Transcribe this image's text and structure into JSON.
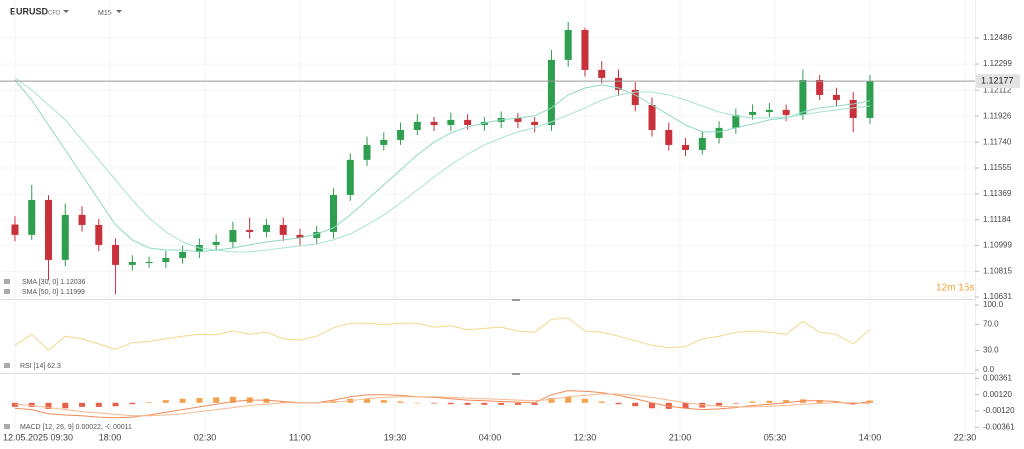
{
  "header": {
    "symbol": "EURUSD",
    "market": "CFD",
    "timeframe": "M15"
  },
  "chart_data": [
    {
      "type": "candlestick",
      "countdown": "12m 15s",
      "last_price": 1.12177,
      "up_color": "#2e9e4f",
      "down_color": "#c8303a",
      "grid": true,
      "xlim": [
        -1.34,
        85.72
      ],
      "ylim": [
        1.10624,
        1.12722
      ],
      "xticks": [
        {
          "value": 0,
          "label": "12.05.2025 09:30"
        },
        {
          "value": 8.5,
          "label": "18:00"
        },
        {
          "value": 17,
          "label": "02:30"
        },
        {
          "value": 25.5,
          "label": "11:00"
        },
        {
          "value": 34,
          "label": "19:30"
        },
        {
          "value": 42.5,
          "label": "04:00"
        },
        {
          "value": 51,
          "label": "12:30"
        },
        {
          "value": 59.5,
          "label": "21:00"
        },
        {
          "value": 68,
          "label": "05:30"
        },
        {
          "value": 76.5,
          "label": "14:00"
        },
        {
          "value": 85,
          "label": "22:30"
        }
      ],
      "yticks": [
        1.12486,
        1.12299,
        1.12112,
        1.11926,
        {
          "value": 1.1174,
          "label": "1.11740"
        },
        1.11555,
        1.11369,
        1.11184,
        1.10999,
        1.10815,
        1.10631
      ],
      "x": [
        0,
        1.5,
        3,
        4.5,
        6,
        7.5,
        9,
        10.5,
        12,
        13.5,
        15,
        16.5,
        18,
        19.5,
        21,
        22.5,
        24,
        25.5,
        27,
        28.5,
        30,
        31.5,
        33,
        34.5,
        36,
        37.5,
        39,
        40.5,
        42,
        43.5,
        45,
        46.5,
        48,
        49.5,
        51,
        52.5,
        54,
        55.5,
        57,
        58.5,
        60,
        61.5,
        63,
        64.5,
        66,
        67.5,
        69,
        70.5,
        72,
        73.5,
        75,
        76.5
      ],
      "open": [
        1.1115,
        1.11076,
        1.11326,
        1.10897,
        1.11219,
        1.11147,
        1.11004,
        1.10861,
        1.10882,
        1.10882,
        1.10911,
        1.10954,
        1.11004,
        1.11025,
        1.11111,
        1.11097,
        1.11147,
        1.11076,
        1.11054,
        1.11097,
        1.11362,
        1.11613,
        1.1172,
        1.11756,
        1.11827,
        1.11885,
        1.11863,
        1.11899,
        1.11863,
        1.11885,
        1.11913,
        1.11885,
        1.11863,
        1.12329,
        1.12543,
        1.12257,
        1.122,
        1.12114,
        1.12006,
        1.11827,
        1.1172,
        1.11684,
        1.1177,
        1.11842,
        1.11935,
        1.11956,
        1.11971,
        1.11935,
        1.12185,
        1.12078,
        1.12042,
        1.11913
      ],
      "high": [
        1.1121,
        1.11433,
        1.1136,
        1.113,
        1.1128,
        1.1119,
        1.1105,
        1.1093,
        1.1092,
        1.1096,
        1.11,
        1.1105,
        1.1108,
        1.1117,
        1.112,
        1.1119,
        1.112,
        1.1112,
        1.1114,
        1.1141,
        1.1166,
        1.1178,
        1.1181,
        1.1188,
        1.1194,
        1.1192,
        1.1195,
        1.1194,
        1.1192,
        1.1196,
        1.1195,
        1.1192,
        1.124,
        1.126,
        1.1256,
        1.1232,
        1.1226,
        1.1217,
        1.1206,
        1.1188,
        1.1177,
        1.1182,
        1.1189,
        1.1198,
        1.1201,
        1.1202,
        1.1201,
        1.1226,
        1.1222,
        1.1213,
        1.121,
        1.1222
      ],
      "low": [
        1.1103,
        1.1104,
        1.1075,
        1.1085,
        1.111,
        1.1096,
        1.1065,
        1.1082,
        1.1084,
        1.1084,
        1.1087,
        1.1091,
        1.1096,
        1.1098,
        1.1105,
        1.1106,
        1.1103,
        1.11,
        1.1101,
        1.1105,
        1.1132,
        1.1157,
        1.1168,
        1.1172,
        1.1179,
        1.1182,
        1.1182,
        1.1183,
        1.1182,
        1.1184,
        1.1184,
        1.1181,
        1.1182,
        1.1228,
        1.1221,
        1.1216,
        1.1207,
        1.1196,
        1.1178,
        1.1168,
        1.1164,
        1.1165,
        1.1173,
        1.118,
        1.119,
        1.1192,
        1.1189,
        1.119,
        1.1204,
        1.12,
        1.1181,
        1.1187
      ],
      "close": [
        1.11076,
        1.11326,
        1.10897,
        1.11219,
        1.11147,
        1.11004,
        1.10861,
        1.10882,
        1.10882,
        1.10911,
        1.10954,
        1.11004,
        1.11025,
        1.11111,
        1.11097,
        1.11147,
        1.11076,
        1.11054,
        1.11097,
        1.11362,
        1.11613,
        1.1172,
        1.11756,
        1.11827,
        1.11885,
        1.11863,
        1.11899,
        1.11863,
        1.11885,
        1.11913,
        1.11885,
        1.11863,
        1.12329,
        1.12543,
        1.12257,
        1.122,
        1.12114,
        1.12006,
        1.11827,
        1.1172,
        1.11684,
        1.1177,
        1.11842,
        1.11935,
        1.11956,
        1.11971,
        1.11935,
        1.12185,
        1.12078,
        1.12042,
        1.11913,
        1.12177
      ],
      "series": [
        {
          "name": "SMA [30, 0] 1.12036",
          "color": "#8fd9c4",
          "values": [
            1.12185,
            1.12042,
            1.11863,
            1.11684,
            1.11505,
            1.11326,
            1.11147,
            1.1104,
            1.10982,
            1.10968,
            1.10968,
            1.10954,
            1.10968,
            1.10982,
            1.11004,
            1.11025,
            1.1104,
            1.11054,
            1.11083,
            1.11126,
            1.11219,
            1.11326,
            1.11434,
            1.11541,
            1.11648,
            1.11741,
            1.11806,
            1.11849,
            1.11877,
            1.11899,
            1.11913,
            1.11928,
            1.11985,
            1.12078,
            1.12128,
            1.1215,
            1.12128,
            1.12078,
            1.12006,
            1.11935,
            1.11863,
            1.11813,
            1.11813,
            1.11842,
            1.1187,
            1.11899,
            1.11913,
            1.11956,
            1.11985,
            1.11999,
            1.12013,
            1.12036
          ]
        },
        {
          "name": "SMA [50, 0] 1.11999",
          "color": "#a9e3d3",
          "values": [
            1.122,
            1.12114,
            1.12006,
            1.11899,
            1.11756,
            1.11613,
            1.11469,
            1.11326,
            1.11197,
            1.11097,
            1.11025,
            1.10982,
            1.10968,
            1.10954,
            1.10954,
            1.10968,
            1.10982,
            1.10997,
            1.11011,
            1.1104,
            1.11083,
            1.11147,
            1.11219,
            1.11305,
            1.11398,
            1.11491,
            1.11577,
            1.11655,
            1.1172,
            1.1177,
            1.11813,
            1.11842,
            1.11885,
            1.11935,
            1.11985,
            1.12042,
            1.12078,
            1.12099,
            1.12099,
            1.12078,
            1.12042,
            1.11999,
            1.11956,
            1.11928,
            1.11913,
            1.11913,
            1.1192,
            1.11935,
            1.11956,
            1.11971,
            1.11985,
            1.11999
          ]
        }
      ]
    },
    {
      "type": "line",
      "label": "RSI [14] 62.3",
      "ylim": [
        0,
        100
      ],
      "yticks": [
        {
          "value": 100,
          "label": "100.0"
        },
        {
          "value": 70,
          "label": "70.0"
        },
        {
          "value": 30,
          "label": "30.0"
        },
        {
          "value": 0,
          "label": "0.0"
        }
      ],
      "series": [
        {
          "color": "#f2d88c",
          "values": [
            38,
            55,
            30,
            52,
            48,
            40,
            32,
            42,
            44,
            48,
            52,
            55,
            54,
            60,
            55,
            58,
            48,
            46,
            52,
            65,
            72,
            72,
            70,
            72,
            72,
            66,
            68,
            62,
            64,
            66,
            60,
            58,
            78,
            80,
            60,
            58,
            52,
            45,
            38,
            34,
            36,
            48,
            52,
            58,
            60,
            58,
            55,
            75,
            58,
            55,
            40,
            62.3
          ]
        }
      ]
    },
    {
      "type": "combo",
      "label": "MACD [12, 26, 9] 0.00022, -0.00011",
      "ylim": [
        -0.0043,
        0.0041
      ],
      "yticks": [
        0.00361,
        {
          "value": 0.0012,
          "label": "0.00120"
        },
        {
          "value": -0.0012,
          "label": "-0.00120"
        },
        -0.00361
      ],
      "series": [
        {
          "kind": "bar",
          "color": "#f5a04a",
          "down_color": "#e8604a",
          "values": [
            -0.0006,
            -0.0006,
            -0.0009,
            -0.0008,
            -0.0006,
            -0.0006,
            -0.0005,
            -0.0002,
            0.0001,
            0.0004,
            0.0006,
            0.0007,
            0.0008,
            0.0009,
            0.0008,
            0.0006,
            0.0002,
            0,
            0,
            0.0003,
            0.0006,
            0.0006,
            0.0004,
            0.0002,
            0,
            -0.0001,
            -0.0002,
            -0.0003,
            -0.0003,
            -0.0003,
            -0.0003,
            -0.0003,
            0.0007,
            0.0009,
            0.0006,
            0.0002,
            -0.0002,
            -0.0005,
            -0.0008,
            -0.0009,
            -0.0008,
            -0.0007,
            -0.0004,
            -0.0001,
            0.0002,
            0.0003,
            0.0004,
            0.0005,
            0.0004,
            0.0002,
            -0.0002,
            0.00033
          ]
        },
        {
          "kind": "line",
          "color": "#f08a5a",
          "values": [
            -0.0008,
            -0.001,
            -0.0016,
            -0.0018,
            -0.0019,
            -0.0021,
            -0.0022,
            -0.0021,
            -0.0018,
            -0.0014,
            -0.001,
            -0.0006,
            -0.0002,
            0.0002,
            0.0004,
            0.0004,
            0.0002,
            0,
            0,
            0.0004,
            0.0009,
            0.0012,
            0.0012,
            0.0011,
            0.0009,
            0.0008,
            0.0006,
            0.0004,
            0.0003,
            0.0002,
            0.0001,
            0,
            0.0012,
            0.0018,
            0.0017,
            0.0015,
            0.0011,
            0.0006,
            0,
            -0.0005,
            -0.0008,
            -0.001,
            -0.0009,
            -0.0007,
            -0.0004,
            -0.0002,
            0,
            0.0003,
            0.0003,
            0.0002,
            -0.0002,
            0.00022
          ]
        },
        {
          "kind": "line",
          "color": "#f6b98e",
          "values": [
            -0.0002,
            -0.0004,
            -0.0007,
            -0.001,
            -0.0013,
            -0.0015,
            -0.0017,
            -0.0019,
            -0.0019,
            -0.0018,
            -0.0016,
            -0.0013,
            -0.001,
            -0.0007,
            -0.0004,
            -0.0002,
            0,
            0,
            0,
            0.0001,
            0.0003,
            0.0006,
            0.0008,
            0.0009,
            0.0009,
            0.0009,
            0.0008,
            0.0007,
            0.0006,
            0.0005,
            0.0004,
            0.0003,
            0.0005,
            0.0009,
            0.0011,
            0.0013,
            0.0013,
            0.0011,
            0.0008,
            0.0004,
            0,
            -0.0003,
            -0.0005,
            -0.0006,
            -0.0006,
            -0.0005,
            -0.0004,
            -0.0002,
            -0.0001,
            0,
            0,
            -0.00011
          ]
        }
      ]
    }
  ]
}
